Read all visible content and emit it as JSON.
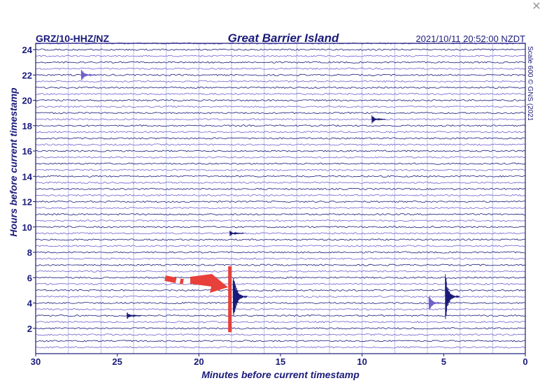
{
  "header": {
    "station": "GRZ/10-HHZ/NZ",
    "title": "Great Barrier Island",
    "timestamp": "2021/10/11 20:52:00 NZDT",
    "scale_note": "Scale 600 © GNS (2021)",
    "close_icon": "close-icon"
  },
  "chart_data": {
    "type": "seismogram-helicorder",
    "title": "Great Barrier Island",
    "xlabel": "Minutes before current timestamp",
    "ylabel": "Hours before current timestamp",
    "xlim": [
      30,
      0
    ],
    "ylim": [
      0,
      24.5
    ],
    "x_ticks": [
      30,
      25,
      20,
      15,
      10,
      5,
      0
    ],
    "y_ticks": [
      2,
      4,
      6,
      8,
      10,
      12,
      14,
      16,
      18,
      20,
      22,
      24
    ],
    "vertical_grid_minutes": [
      28,
      26,
      24,
      22,
      20,
      18,
      16,
      14,
      12,
      10,
      8,
      6,
      4,
      2
    ],
    "rows_per_hour": 2,
    "colors": {
      "trace_dark": "#1a1a7a",
      "trace_light": "#7060cc",
      "grid": "#b8c0e8",
      "annotation": "#e8403a"
    },
    "events": [
      {
        "minute": 27.2,
        "hours": 22.0,
        "amplitude": 1.0,
        "color": "#7060cc"
      },
      {
        "minute": 9.4,
        "hours": 18.5,
        "amplitude": 0.6,
        "color": "#1a1a7a"
      },
      {
        "minute": 18.1,
        "hours": 9.5,
        "amplitude": 0.4,
        "color": "#1a1a7a"
      },
      {
        "minute": 24.4,
        "hours": 3.0,
        "amplitude": 0.6,
        "color": "#1a1a7a"
      },
      {
        "minute": 17.9,
        "hours": 4.5,
        "amplitude": 4.5,
        "color": "#1a1a7a"
      },
      {
        "minute": 5.9,
        "hours": 4.0,
        "amplitude": 1.2,
        "color": "#7060cc"
      },
      {
        "minute": 4.9,
        "hours": 4.5,
        "amplitude": 3.5,
        "color": "#1a1a7a"
      }
    ],
    "annotation": {
      "type": "arrow-to-line",
      "minute": 18.1,
      "hours_range": [
        1.7,
        6.9
      ],
      "color": "#e8403a"
    },
    "grid": true
  }
}
